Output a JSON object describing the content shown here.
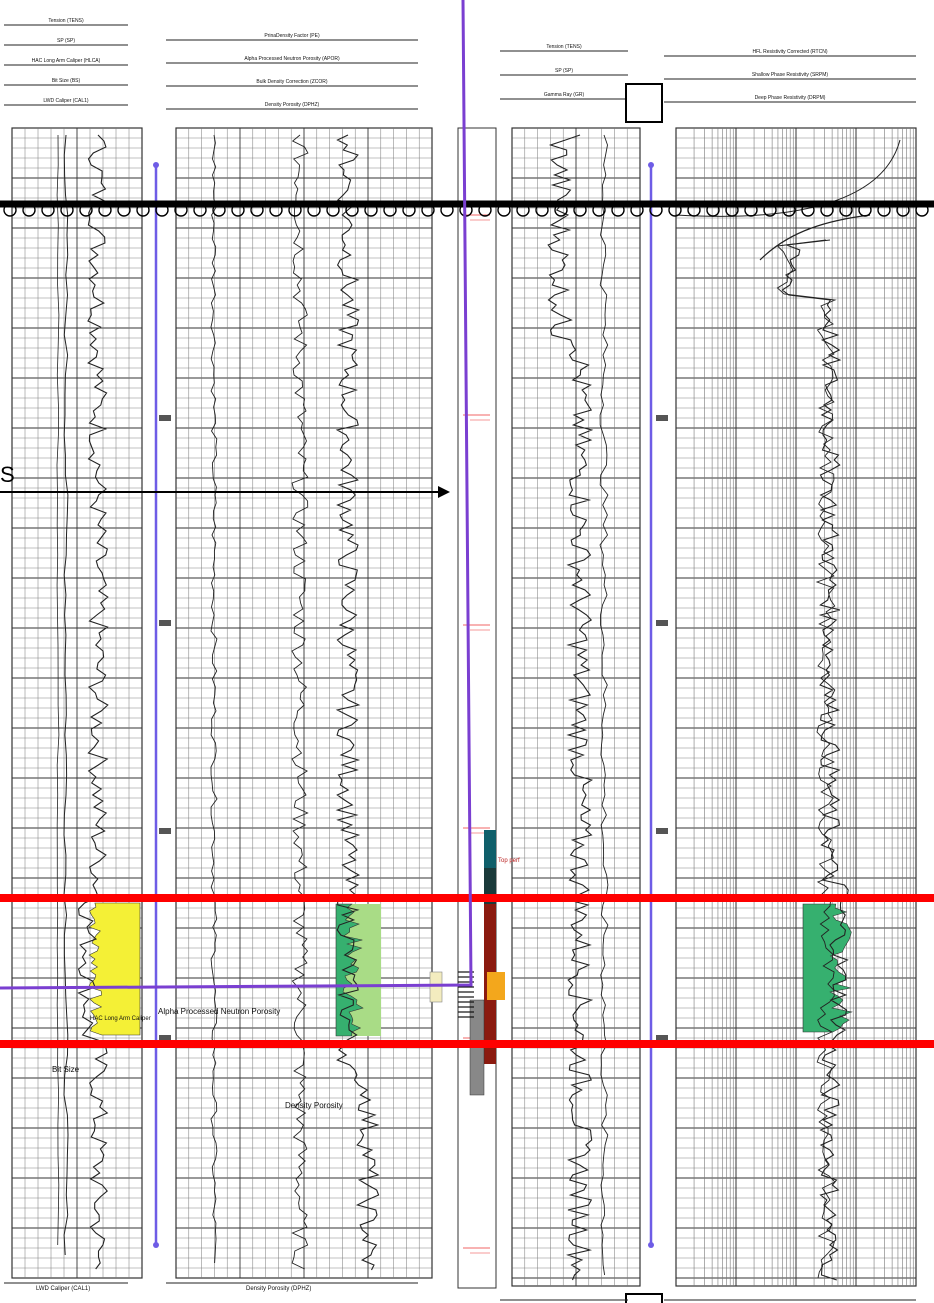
{
  "side_label": "S",
  "header_left": {
    "track1_labels": [
      "Tension (TENS)",
      "SP (SP)",
      "HAC Long Arm Caliper (HLCA)",
      "Bit Size (BS)",
      "LWD Caliper (CAL1)"
    ],
    "track2_labels": [
      "PrinaDensity Factor (PE)",
      "Alpha Processed Neutron Porosity (APOR)",
      "Bulk Density Correction (ZCOR)",
      "Density Porosity (DPHZ)"
    ]
  },
  "header_right": {
    "track1_labels": [
      "Tension (TENS)",
      "SP (SP)",
      "Gamma Ray (GR)"
    ],
    "track2_labels": [
      "HFL Resistivity Corrected (RTCN)",
      "Shallow Phase Resistivity (SRPM)",
      "Deep Phase Resistivity (DRPM)"
    ]
  },
  "annotations": {
    "left_ipk": "Alpha Processed Neutron Porosity",
    "left_bottom_a": "Bit Size",
    "left_bottom_b": "Density Porosity",
    "left_caliper": "HAC Long Arm Caliper",
    "wellbore_top": "Top perf",
    "footer_left_a": "LWD Caliper (CAL1)",
    "footer_left_b": "Density Porosity (DPHZ)"
  },
  "colors": {
    "grid": "#777777",
    "grid_dark": "#333333",
    "curve": "#222222",
    "depth_line": "#6e5ce6",
    "well_path": "#7a3fd1",
    "zone_bound": "#ff0000",
    "sand_fill": "#f4f036",
    "porosity_fill": "#36b06f",
    "porosity_fill_light": "#a9dc86",
    "thick_line": "#000000"
  }
}
